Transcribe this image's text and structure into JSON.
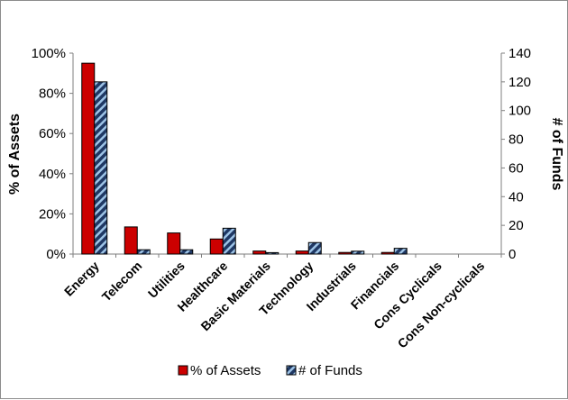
{
  "chart_data": {
    "type": "bar",
    "categories": [
      "Energy",
      "Telecom",
      "Utilities",
      "Healthcare",
      "Basic Materials",
      "Technology",
      "Industrials",
      "Financials",
      "Cons Cyclicals",
      "Cons Non-cyclicals"
    ],
    "series": [
      {
        "name": "% of Assets",
        "axis": "left",
        "color": "#cc0000",
        "values": [
          95,
          13.5,
          10.5,
          7.5,
          1.5,
          1.5,
          0.8,
          0.8,
          0,
          0
        ]
      },
      {
        "name": "# of Funds",
        "axis": "right",
        "color": "#1f3864",
        "pattern": "diagonal-stripes",
        "values": [
          120,
          3,
          3,
          18,
          1,
          8,
          2,
          4,
          0,
          0
        ]
      }
    ],
    "ylabel": "% of Assets",
    "y2label": "# of Funds",
    "ylim": [
      0,
      100
    ],
    "y2lim": [
      0,
      140
    ],
    "yticks": [
      "0%",
      "20%",
      "40%",
      "60%",
      "80%",
      "100%"
    ],
    "y2ticks": [
      "0",
      "20",
      "40",
      "60",
      "80",
      "100",
      "120",
      "140"
    ],
    "legend": "bottom",
    "grid": false
  }
}
